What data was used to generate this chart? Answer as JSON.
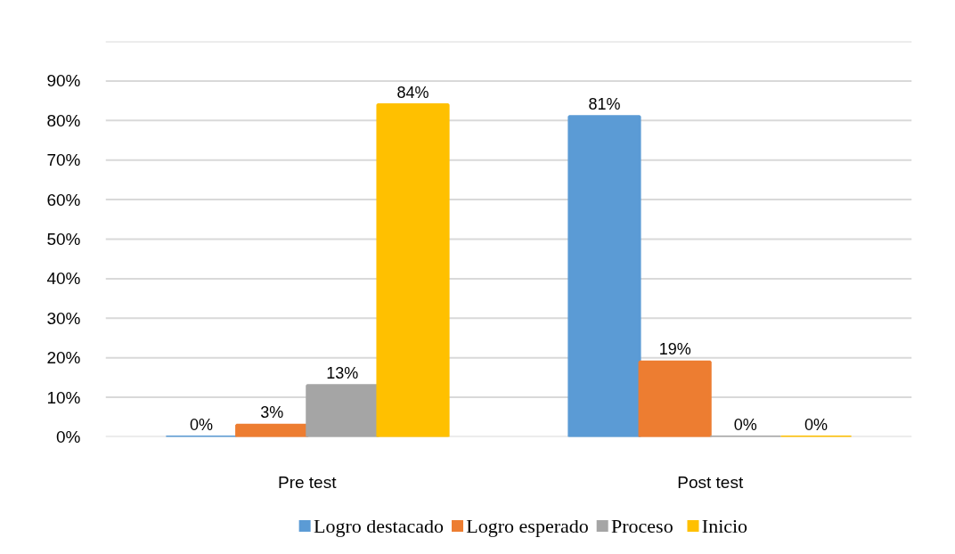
{
  "chart_data": {
    "type": "bar",
    "categories": [
      "Pre test",
      "Post test"
    ],
    "series": [
      {
        "name": "Logro destacado",
        "color": "#5b9bd5",
        "values": [
          0,
          81
        ],
        "value_labels": [
          "0%",
          "81%"
        ]
      },
      {
        "name": "Logro esperado",
        "color": "#ed7d31",
        "values": [
          3,
          19
        ],
        "value_labels": [
          "3%",
          "19%"
        ]
      },
      {
        "name": "Proceso",
        "color": "#a5a5a5",
        "values": [
          13,
          0
        ],
        "value_labels": [
          "13%",
          "0%"
        ]
      },
      {
        "name": "Inicio",
        "color": "#ffc000",
        "values": [
          84,
          0
        ],
        "value_labels": [
          "84%",
          "0%"
        ]
      }
    ],
    "ylim": [
      0,
      100
    ],
    "yticks": [
      {
        "value": 0,
        "label": "0%"
      },
      {
        "value": 10,
        "label": "10%"
      },
      {
        "value": 20,
        "label": "20%"
      },
      {
        "value": 30,
        "label": "30%"
      },
      {
        "value": 40,
        "label": "40%"
      },
      {
        "value": 50,
        "label": "50%"
      },
      {
        "value": 60,
        "label": "60%"
      },
      {
        "value": 70,
        "label": "70%"
      },
      {
        "value": 80,
        "label": "80%"
      },
      {
        "value": 90,
        "label": "90%"
      },
      {
        "value": 100,
        "label": null
      }
    ],
    "grid": "y",
    "legend": "bottom"
  }
}
